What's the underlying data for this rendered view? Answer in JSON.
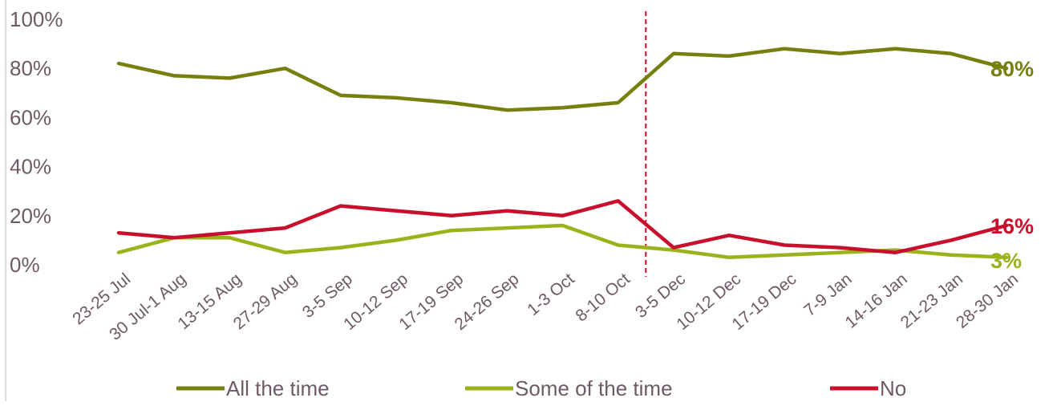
{
  "chart_data": {
    "type": "line",
    "categories": [
      "23-25 Jul",
      "30 Jul-1 Aug",
      "13-15 Aug",
      "27-29 Aug",
      "3-5 Sep",
      "10-12 Sep",
      "17-19 Sep",
      "24-26 Sep",
      "1-3 Oct",
      "8-10 Oct",
      "3-5 Dec",
      "10-12 Dec",
      "17-19 Dec",
      "7-9 Jan",
      "14-16 Jan",
      "21-23 Jan",
      "28-30 Jan"
    ],
    "series": [
      {
        "name": "All the time",
        "color": "#76800f",
        "values": [
          82,
          77,
          76,
          80,
          69,
          68,
          66,
          63,
          64,
          66,
          86,
          85,
          88,
          86,
          88,
          86,
          80
        ],
        "end_label": "80%"
      },
      {
        "name": "Some of the time",
        "color": "#9cb21c",
        "values": [
          5,
          11,
          11,
          5,
          7,
          10,
          14,
          15,
          16,
          8,
          6,
          3,
          4,
          5,
          6,
          4,
          3
        ],
        "end_label": "3%"
      },
      {
        "name": "No",
        "color": "#c8102e",
        "values": [
          13,
          11,
          13,
          15,
          24,
          22,
          20,
          22,
          20,
          26,
          7,
          12,
          8,
          7,
          5,
          10,
          16
        ],
        "end_label": "16%"
      }
    ],
    "ylim": [
      0,
      100
    ],
    "y_ticks": [
      "0%",
      "20%",
      "40%",
      "60%",
      "80%",
      "100%"
    ],
    "title": "",
    "xlabel": "",
    "ylabel": "",
    "grid": false,
    "legend_position": "bottom",
    "divider_between": [
      "8-10 Oct",
      "3-5 Dec"
    ],
    "divider_color": "#c8102e"
  }
}
